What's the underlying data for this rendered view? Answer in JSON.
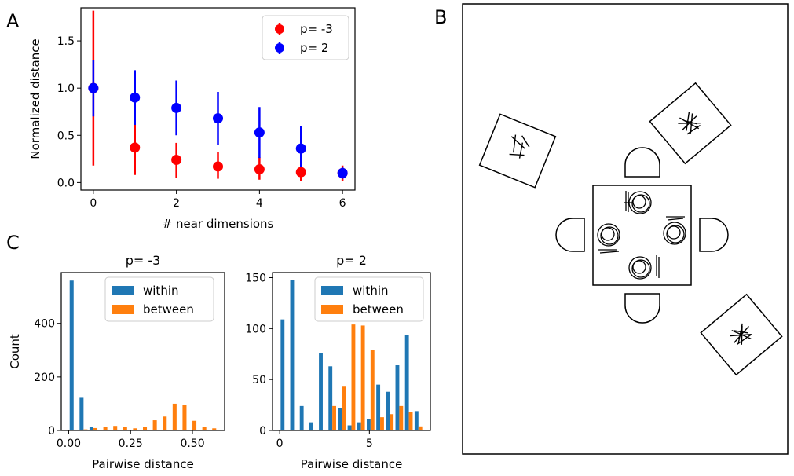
{
  "panels": {
    "a": "A",
    "b": "B",
    "c": "C"
  },
  "chart_data": [
    {
      "id": "A",
      "type": "scatter",
      "xlabel": "# near dimensions",
      "ylabel": "Normalized distance",
      "xlim": [
        -0.3,
        6.3
      ],
      "ylim": [
        -0.08,
        1.85
      ],
      "xticks": [
        0,
        2,
        4,
        6
      ],
      "yticks": [
        0.0,
        0.5,
        1.0,
        1.5
      ],
      "legend": "top-right",
      "series": [
        {
          "name": "p= -3",
          "color": "#ff0000",
          "x": [
            0,
            1,
            2,
            3,
            4,
            5,
            6
          ],
          "y": [
            1.0,
            0.37,
            0.24,
            0.17,
            0.14,
            0.11,
            0.1
          ],
          "err_low": [
            0.18,
            0.08,
            0.05,
            0.04,
            0.03,
            0.02,
            0.02
          ],
          "err_high": [
            1.82,
            0.62,
            0.42,
            0.32,
            0.27,
            0.22,
            0.18
          ]
        },
        {
          "name": "p= 2",
          "color": "#0000ff",
          "x": [
            0,
            1,
            2,
            3,
            4,
            5,
            6
          ],
          "y": [
            1.0,
            0.9,
            0.79,
            0.68,
            0.53,
            0.36,
            0.1
          ],
          "err_low": [
            0.7,
            0.61,
            0.5,
            0.4,
            0.26,
            0.13,
            0.04
          ],
          "err_high": [
            1.3,
            1.19,
            1.08,
            0.96,
            0.8,
            0.6,
            0.16
          ]
        }
      ]
    },
    {
      "id": "C1",
      "type": "bar",
      "title": "p= -3",
      "xlabel": "Pairwise distance",
      "ylabel": "Count",
      "xlim": [
        -0.03,
        0.63
      ],
      "ylim": [
        0,
        590
      ],
      "xticks": [
        "0.00",
        "0.25",
        "0.50"
      ],
      "xtick_values": [
        0.0,
        0.25,
        0.5
      ],
      "yticks": [
        0,
        200,
        400
      ],
      "bin_edges": [
        0.0,
        0.04,
        0.08,
        0.12,
        0.16,
        0.2,
        0.24,
        0.28,
        0.32,
        0.36,
        0.4,
        0.44,
        0.48,
        0.52,
        0.56,
        0.6
      ],
      "legend": "top-right",
      "series": [
        {
          "name": "within",
          "color": "#1f77b4",
          "values": [
            560,
            122,
            12,
            0,
            0,
            0,
            0,
            0,
            0,
            0,
            0,
            0,
            0,
            0,
            0
          ]
        },
        {
          "name": "between",
          "color": "#ff7f0e",
          "values": [
            0,
            4,
            9,
            12,
            17,
            14,
            8,
            14,
            38,
            52,
            100,
            94,
            36,
            12,
            8
          ]
        }
      ]
    },
    {
      "id": "C2",
      "type": "bar",
      "title": "p= 2",
      "xlabel": "Pairwise distance",
      "ylabel": "",
      "xlim": [
        -0.4,
        8.4
      ],
      "ylim": [
        0,
        155
      ],
      "xticks": [
        "0",
        "5"
      ],
      "xtick_values": [
        0,
        5
      ],
      "yticks": [
        0,
        50,
        100,
        150
      ],
      "bin_edges": [
        0.0,
        0.533,
        1.067,
        1.6,
        2.133,
        2.667,
        3.2,
        3.733,
        4.267,
        4.8,
        5.333,
        5.867,
        6.4,
        6.933,
        7.467,
        8.0
      ],
      "legend": "top-right",
      "series": [
        {
          "name": "within",
          "color": "#1f77b4",
          "values": [
            109,
            148,
            24,
            8,
            76,
            63,
            22,
            5,
            8,
            11,
            45,
            38,
            64,
            94,
            19
          ]
        },
        {
          "name": "between",
          "color": "#ff7f0e",
          "values": [
            0,
            0,
            0,
            0,
            0,
            24,
            43,
            104,
            103,
            79,
            13,
            16,
            24,
            18,
            4
          ]
        }
      ]
    }
  ]
}
